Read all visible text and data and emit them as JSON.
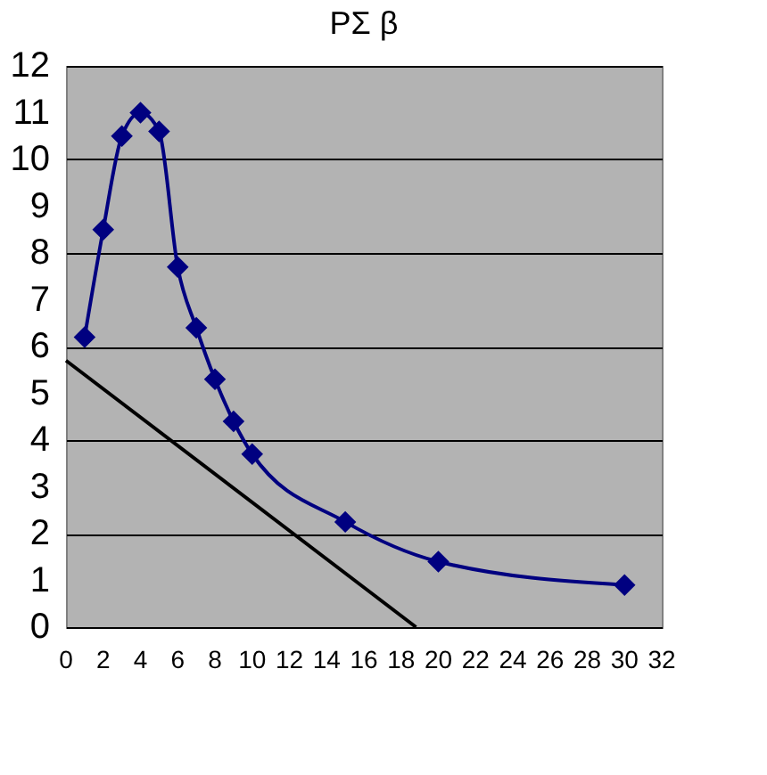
{
  "chart_data": {
    "type": "line",
    "title": "PΣ β",
    "xlim": [
      0,
      32
    ],
    "xticks": [
      0,
      2,
      4,
      6,
      8,
      10,
      12,
      14,
      16,
      18,
      20,
      22,
      24,
      26,
      28,
      30,
      32
    ],
    "ylim": [
      0,
      12
    ],
    "yticks": [
      0,
      1,
      2,
      3,
      4,
      5,
      6,
      7,
      8,
      9,
      10,
      11,
      12
    ],
    "grid": "y",
    "legend": false,
    "series": [
      {
        "color": "#000080",
        "marker": "diamond",
        "line_style": "solid",
        "x": [
          1,
          2,
          3,
          4,
          5,
          6,
          7,
          8,
          9,
          10,
          15,
          20,
          30
        ],
        "values": [
          6.2,
          8.5,
          10.5,
          11.0,
          10.6,
          7.7,
          6.4,
          5.3,
          4.4,
          3.7,
          2.25,
          1.4,
          0.9
        ]
      },
      {
        "color": "#000000",
        "marker": "none",
        "line_style": "solid",
        "x": [
          0,
          18.8
        ],
        "values": [
          5.7,
          0
        ]
      }
    ]
  }
}
